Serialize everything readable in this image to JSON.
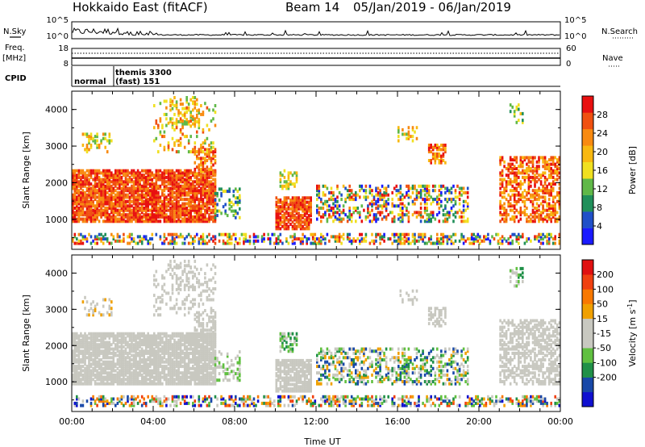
{
  "header": {
    "station": "Hokkaido East (fitACF)",
    "beam": "Beam 14",
    "date_range": "05/Jan/2019 - 06/Jan/2019"
  },
  "strips": {
    "nsky_label": "N.Sky",
    "nsky_ticks": [
      "10^5",
      "10^0"
    ],
    "nsearch_label": "N.Search",
    "nsearch_ticks": [
      "10^5",
      "10^0"
    ],
    "freq_label": "Freq.",
    "freq_unit": "[MHz]",
    "freq_ticks": [
      "18",
      "8"
    ],
    "nave_label": "Nave",
    "nave_ticks": [
      "60",
      "0"
    ],
    "cpid_label": "CPID",
    "cpid_mode_1": "normal",
    "cpid_mode_2_line1": "themis 3300",
    "cpid_mode_2_line2": "(fast) 151"
  },
  "colors": {
    "power": [
      "#1a1aff",
      "#2050c8",
      "#208f5a",
      "#60b848",
      "#f0e020",
      "#f8b810",
      "#f88a10",
      "#f05010",
      "#e81010"
    ],
    "velocity": [
      "#1010d0",
      "#1848a8",
      "#209048",
      "#60c040",
      "#c8c8c0",
      "#c8c8c0",
      "#f0a000",
      "#f87800",
      "#f04010",
      "#e01010"
    ]
  },
  "chart_data": [
    {
      "type": "heatmap",
      "title": "Power",
      "xlabel": "",
      "ylabel": "Slant Range [km]",
      "xlim": [
        "00:00",
        "00:00"
      ],
      "x_ticks": [
        "00:00",
        "04:00",
        "08:00",
        "12:00",
        "16:00",
        "20:00",
        "00:00"
      ],
      "ylim": [
        180,
        4500
      ],
      "y_ticks": [
        "1000",
        "2000",
        "3000",
        "4000"
      ],
      "colorbar_label": "Power [dB]",
      "colorbar_ticks": [
        "4",
        "8",
        "12",
        "16",
        "20",
        "24",
        "28"
      ],
      "colorbar_range": [
        0,
        32
      ]
    },
    {
      "type": "heatmap",
      "title": "Velocity",
      "xlabel": "Time UT",
      "ylabel": "Slant Range [km]",
      "xlim": [
        "00:00",
        "00:00"
      ],
      "x_ticks": [
        "00:00",
        "04:00",
        "08:00",
        "12:00",
        "16:00",
        "20:00",
        "00:00"
      ],
      "ylim": [
        180,
        4500
      ],
      "y_ticks": [
        "1000",
        "2000",
        "3000",
        "4000"
      ],
      "colorbar_label": "Velocity [m s^-1]",
      "colorbar_ticks": [
        "200",
        "100",
        "50",
        "15",
        "-15",
        "-50",
        "-100",
        "-200"
      ],
      "colorbar_range": [
        -250,
        250
      ]
    }
  ]
}
